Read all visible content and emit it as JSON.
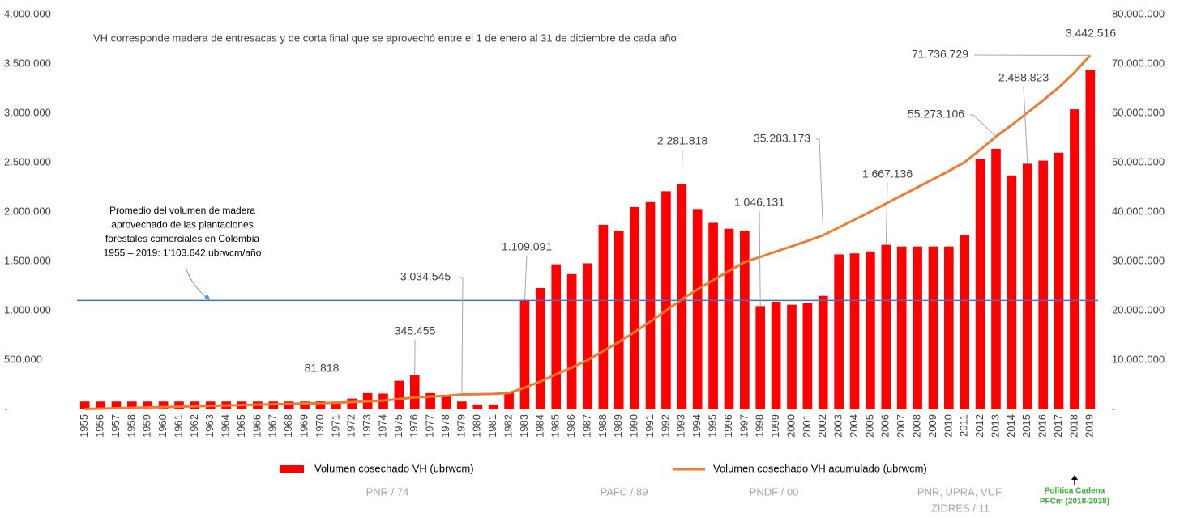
{
  "chart_data": {
    "type": "bar-line",
    "note": "VH corresponde madera de entresacas y de corta final que se aprovechó entre el 1 de enero al 31 de diciembre de cada año",
    "average_text": [
      "Promedio del volumen de madera",
      "aprovechado de las plantaciones",
      "forestales comerciales en Colombia",
      "1955 – 2019: 1’103.642 ubrwcm/año"
    ],
    "average_line": 1103642,
    "average_color": "#4472c4",
    "categories": [
      "1955",
      "1956",
      "1957",
      "1958",
      "1959",
      "1960",
      "1961",
      "1962",
      "1963",
      "1964",
      "1965",
      "1966",
      "1967",
      "1968",
      "1969",
      "1970",
      "1971",
      "1972",
      "1973",
      "1974",
      "1975",
      "1976",
      "1977",
      "1978",
      "1979",
      "1980",
      "1981",
      "1982",
      "1983",
      "1984",
      "1985",
      "1986",
      "1987",
      "1988",
      "1989",
      "1990",
      "1991",
      "1992",
      "1993",
      "1994",
      "1995",
      "1996",
      "1997",
      "1998",
      "1999",
      "2000",
      "2001",
      "2002",
      "2003",
      "2004",
      "2005",
      "2006",
      "2007",
      "2008",
      "2009",
      "2010",
      "2011",
      "2012",
      "2013",
      "2014",
      "2015",
      "2016",
      "2017",
      "2018",
      "2019"
    ],
    "series": [
      {
        "name": "Volumen cosechado VH (ubrwcm)",
        "type": "bar",
        "color": "#ff0000",
        "values": [
          80000,
          80000,
          80000,
          80000,
          80000,
          80000,
          80000,
          80000,
          80000,
          80000,
          80000,
          80000,
          80000,
          80000,
          80000,
          81818,
          80000,
          110000,
          165000,
          160000,
          290000,
          345455,
          165000,
          140000,
          80000,
          50000,
          50000,
          180000,
          1109091,
          1230000,
          1470000,
          1370000,
          1480000,
          1870000,
          1810000,
          2050000,
          2100000,
          2210000,
          2281818,
          2030000,
          1890000,
          1830000,
          1810000,
          1046131,
          1090000,
          1060000,
          1080000,
          1150000,
          1570000,
          1580000,
          1600000,
          1667136,
          1650000,
          1650000,
          1650000,
          1650000,
          1770000,
          2540000,
          2640000,
          2370000,
          2488823,
          2520000,
          2600000,
          3040000,
          3442516
        ],
        "value_labels": [
          null,
          null,
          null,
          null,
          null,
          null,
          null,
          null,
          null,
          null,
          null,
          null,
          null,
          null,
          null,
          "81.818",
          null,
          null,
          null,
          null,
          null,
          "345.455",
          null,
          null,
          null,
          null,
          null,
          null,
          "1.109.091",
          null,
          null,
          null,
          null,
          null,
          null,
          null,
          null,
          null,
          "2.281.818",
          null,
          null,
          null,
          null,
          "1.046.131",
          null,
          null,
          null,
          null,
          null,
          null,
          null,
          "1.667.136",
          null,
          null,
          null,
          null,
          null,
          null,
          null,
          null,
          "2.488.823",
          null,
          null,
          null,
          "3.442.516"
        ]
      },
      {
        "name": "Volumen cosechado VH acumulado (ubrwcm)",
        "type": "line",
        "axis": "y2",
        "color": "#ed7d31",
        "values": [
          80000,
          160000,
          240000,
          320000,
          400000,
          480000,
          560000,
          640000,
          720000,
          800000,
          880000,
          960000,
          1040000,
          1120000,
          1200000,
          1280000,
          1360000,
          1470000,
          1640000,
          1800000,
          2090000,
          2430000,
          2600000,
          2740000,
          3034545,
          3080000,
          3130000,
          3310000,
          4420000,
          5650000,
          7120000,
          8490000,
          9970000,
          11840000,
          13650000,
          15700000,
          17800000,
          20010000,
          22290000,
          24320000,
          26210000,
          28040000,
          29850000,
          30900000,
          31990000,
          33050000,
          34130000,
          35283173,
          36850000,
          38430000,
          40030000,
          41700000,
          43350000,
          45000000,
          46650000,
          48300000,
          50070000,
          52610000,
          55273106,
          57620000,
          60110000,
          62630000,
          65230000,
          68270000,
          71736729
        ],
        "value_labels": [
          null,
          null,
          null,
          null,
          null,
          null,
          null,
          null,
          null,
          null,
          null,
          null,
          null,
          null,
          null,
          null,
          null,
          null,
          null,
          null,
          null,
          null,
          null,
          null,
          "3.034.545",
          null,
          null,
          null,
          null,
          null,
          null,
          null,
          null,
          null,
          null,
          null,
          null,
          null,
          null,
          null,
          null,
          null,
          null,
          null,
          null,
          null,
          null,
          "35.283.173",
          null,
          null,
          null,
          null,
          null,
          null,
          null,
          null,
          null,
          null,
          "55.273.106",
          null,
          null,
          null,
          null,
          null,
          "71.736.729"
        ]
      }
    ],
    "ylim": [
      0,
      4000000
    ],
    "yticks": [
      {
        "value": 0,
        "label": "-"
      },
      {
        "value": 500000,
        "label": "500.000"
      },
      {
        "value": 1000000,
        "label": "1.000.000"
      },
      {
        "value": 1500000,
        "label": "1.500.000"
      },
      {
        "value": 2000000,
        "label": "2.000.000"
      },
      {
        "value": 2500000,
        "label": "2.500.000"
      },
      {
        "value": 3000000,
        "label": "3.000.000"
      },
      {
        "value": 3500000,
        "label": "3.500.000"
      },
      {
        "value": 4000000,
        "label": "4.000.000"
      }
    ],
    "y2lim": [
      0,
      80000000
    ],
    "y2ticks": [
      {
        "value": 0,
        "label": "-"
      },
      {
        "value": 10000000,
        "label": "10.000.000"
      },
      {
        "value": 20000000,
        "label": "20.000.000"
      },
      {
        "value": 30000000,
        "label": "30.000.000"
      },
      {
        "value": 40000000,
        "label": "40.000.000"
      },
      {
        "value": 50000000,
        "label": "50.000.000"
      },
      {
        "value": 60000000,
        "label": "60.000.000"
      },
      {
        "value": 70000000,
        "label": "70.000.000"
      },
      {
        "value": 80000000,
        "label": "80.000.000"
      }
    ],
    "periods": [
      "PNR / 74",
      "PAFC / 89",
      "PNDF / 00",
      "PNR, UPRA, VUF,",
      "ZIDRES / 11"
    ],
    "policy": [
      "Política Cadena",
      "PFCm (2018-2038)"
    ],
    "policy_color": "#3aaa35"
  }
}
